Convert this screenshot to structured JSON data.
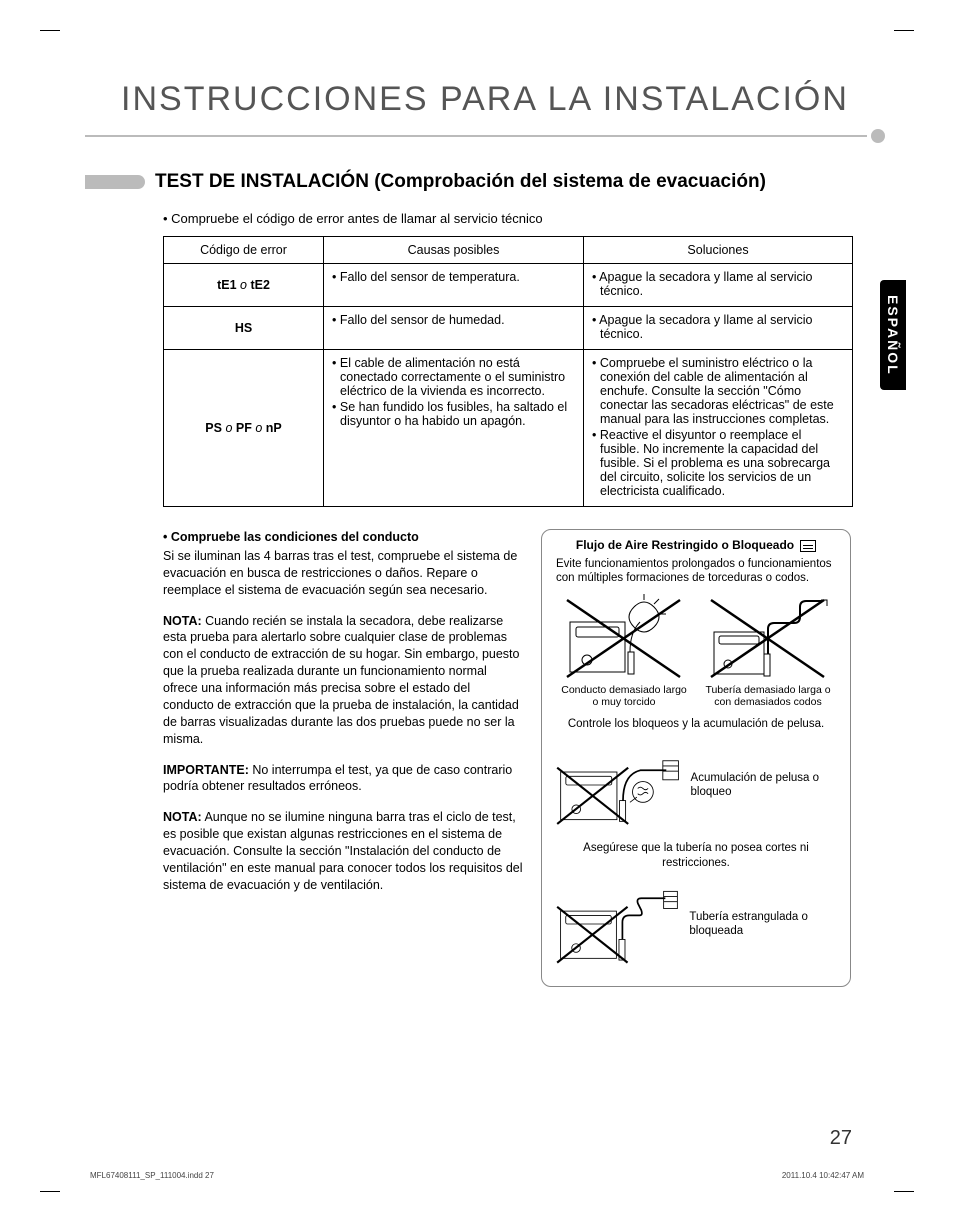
{
  "tab_label": "ESPAÑOL",
  "main_title": "INSTRUCCIONES PARA LA INSTALACIÓN",
  "section_title": "TEST DE INSTALACIÓN (Comprobación del sistema de evacuación)",
  "intro_bullet": "• Compruebe el código de error antes de llamar al servicio técnico",
  "table": {
    "headers": {
      "code": "Código de error",
      "cause": "Causas posibles",
      "solution": "Soluciones"
    },
    "rows": [
      {
        "code_html": "tE1 <span class='o'>o</span> tE2",
        "causes": [
          "Fallo del sensor de temperatura."
        ],
        "solutions": [
          "Apague la secadora y llame al servicio técnico."
        ]
      },
      {
        "code_html": "HS",
        "causes": [
          "Fallo del sensor de humedad."
        ],
        "solutions": [
          "Apague la secadora y llame al servicio técnico."
        ]
      },
      {
        "code_html": "PS <span class='o'>o</span> PF <span class='o'>o</span> nP",
        "causes": [
          "El cable de alimentación no está conectado correctamente o el suministro eléctrico de la vivienda es incorrecto.",
          "Se han fundido los fusibles, ha saltado el disyuntor o ha habido un apagón."
        ],
        "solutions": [
          "Compruebe el suministro eléctrico o la conexión del cable de alimentación al enchufe. Consulte la sección \"Cómo conectar las secadoras eléctricas\" de este manual para las instrucciones completas.",
          "Reactive el disyuntor o reemplace el fusible. No incremente la capacidad del fusible. Si el problema es una sobrecarga del circuito, solicite los servicios de un electricista cualificado."
        ]
      }
    ]
  },
  "left": {
    "h3": "• Compruebe las condiciones del conducto",
    "p1": "Si se iluminan las 4 barras tras el test, compruebe el sistema de evacuación en busca de restricciones o daños. Repare o reemplace el sistema de evacuación según sea necesario.",
    "p2_label": "NOTA:",
    "p2": " Cuando recién se instala la secadora, debe realizarse esta prueba para alertarlo sobre cualquier clase de problemas con el conducto de extracción de su hogar. Sin embargo, puesto que la prueba realizada durante un funcionamiento normal ofrece una información más precisa sobre el estado del conducto de extracción que la prueba de instalación, la cantidad de barras visualizadas durante las dos pruebas puede no ser la misma.",
    "p3_label": "IMPORTANTE:",
    "p3": " No interrumpa el test, ya que de caso contrario podría obtener resultados erróneos.",
    "p4_label": "NOTA:",
    "p4": " Aunque no se ilumine ninguna barra tras el ciclo de test, es posible que existan algunas restricciones en el sistema de evacuación. Consulte la sección \"Instalación del conducto de ventilación\" en este manual para conocer todos los requisitos del sistema de evacuación y de ventilación."
  },
  "right": {
    "title": "Flujo de Aire Restringido o Bloqueado",
    "sub": "Evite funcionamientos prolongados o funcionamientos con múltiples formaciones de torceduras o codos.",
    "cap1": "Conducto demasiado largo o muy torcido",
    "cap2": "Tubería demasiado larga o con demasiados codos",
    "mid1": "Controle los bloqueos y la acumulación de pelusa.",
    "lbl1": "Acumulación de pelusa o bloqueo",
    "mid2": "Asegúrese que la tubería no posea cortes ni restricciones.",
    "lbl2": "Tubería estrangulada o bloqueada"
  },
  "page_number": "27",
  "footer_left": "MFL67408111_SP_111004.indd   27",
  "footer_right": "2011.10.4   10:42:47 AM"
}
